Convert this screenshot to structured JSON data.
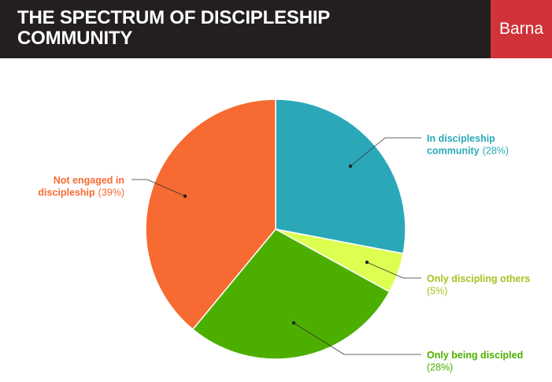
{
  "header": {
    "title_line1": "THE SPECTRUM OF DISCIPLESHIP",
    "title_line2": "COMMUNITY",
    "brand": "Barna"
  },
  "chart_data": {
    "type": "pie",
    "start_angle": "12 o'clock",
    "direction": "clockwise",
    "slices": [
      {
        "label_lines": [
          "In discipleship",
          "community"
        ],
        "pct_label": "(28%)",
        "value": 28,
        "color": "#2aa8b8",
        "label_side": "right"
      },
      {
        "label_lines": [
          "Only discipling others"
        ],
        "pct_label": "(5%)",
        "value": 5,
        "color": "#dcff52",
        "label_color": "#a6c21f",
        "label_side": "right"
      },
      {
        "label_lines": [
          "Only being discipled"
        ],
        "pct_label": "(28%)",
        "value": 28,
        "color": "#4caf00",
        "label_side": "right"
      },
      {
        "label_lines": [
          "Not engaged in",
          "discipleship"
        ],
        "pct_label": "(39%)",
        "value": 39,
        "color": "#f76a31",
        "label_side": "left"
      }
    ]
  }
}
